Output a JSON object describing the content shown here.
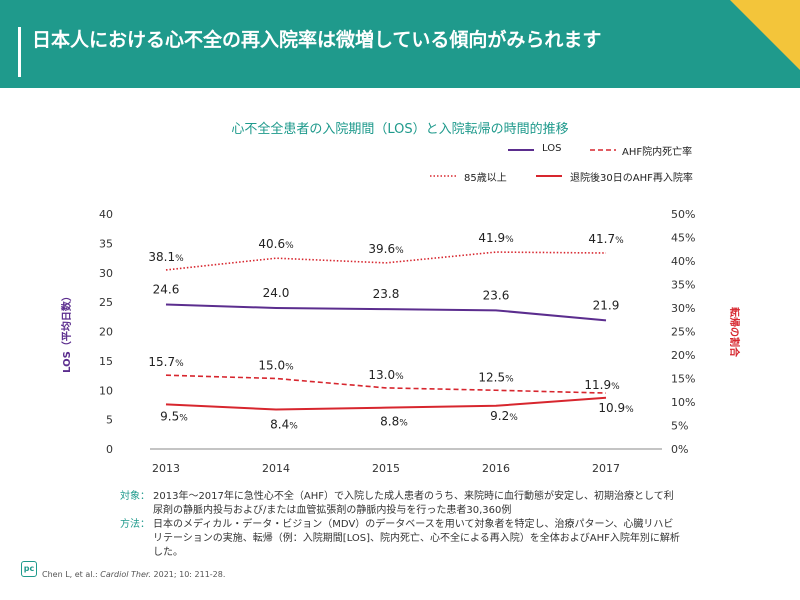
{
  "header": {
    "title": "日本人における心不全の再入院率は微増している傾向がみられます",
    "accent_color": "#1f9a8c",
    "corner_color": "#f3c53a"
  },
  "chart_data": {
    "type": "line",
    "title": "心不全全患者の入院期間（LOS）と入院転帰の時間的推移",
    "categories": [
      "2013",
      "2014",
      "2015",
      "2016",
      "2017"
    ],
    "ylabel_left": "LOS（平均日数）",
    "ylabel_right": "転帰の割合",
    "ylim_left": [
      0,
      40
    ],
    "ylim_right": [
      0,
      50
    ],
    "yticks_left": [
      "0",
      "5",
      "10",
      "15",
      "20",
      "25",
      "30",
      "35",
      "40"
    ],
    "yticks_right": [
      "0%",
      "5%",
      "10%",
      "15%",
      "20%",
      "25%",
      "30%",
      "35%",
      "40%",
      "45%",
      "50%"
    ],
    "series": [
      {
        "name": "LOS",
        "axis": "left",
        "color": "#5b2d8e",
        "style": "solid",
        "values": [
          24.6,
          24.0,
          23.8,
          23.6,
          21.9
        ],
        "labels": [
          "24.6",
          "24.0",
          "23.8",
          "23.6",
          "21.9"
        ]
      },
      {
        "name": "AHF院内死亡率",
        "axis": "right",
        "color": "#d7262e",
        "style": "dashed",
        "values": [
          15.7,
          15.0,
          13.0,
          12.5,
          11.9
        ],
        "labels": [
          "15.7",
          "15.0",
          "13.0",
          "12.5",
          "11.9"
        ]
      },
      {
        "name": "85歳以上",
        "axis": "right",
        "color": "#d7262e",
        "style": "dotted",
        "values": [
          38.1,
          40.6,
          39.6,
          41.9,
          41.7
        ],
        "labels": [
          "38.1",
          "40.6",
          "39.6",
          "41.9",
          "41.7"
        ]
      },
      {
        "name": "退院後30日のAHF再入院率",
        "axis": "right",
        "color": "#d7262e",
        "style": "solid",
        "values": [
          9.5,
          8.4,
          8.8,
          9.2,
          10.9
        ],
        "labels": [
          "9.5",
          "8.4",
          "8.8",
          "9.2",
          "10.9"
        ]
      }
    ],
    "percent_suffix": "%"
  },
  "notes": {
    "target_label": "対象：",
    "target_text": "2013年～2017年に急性心不全（AHF）で入院した成人患者のうち、来院時に血行動態が安定し、初期治療として利尿剤の静脈内投与および/または血管拡張剤の静脈内投与を行った患者30,360例",
    "method_label": "方法：",
    "method_text": "日本のメディカル・データ・ビジョン（MDV）のデータベースを用いて対象者を特定し、治療パターン、心臓リハビリテーションの実施、転帰（例：入院期間[LOS]、院内死亡、心不全による再入院）を全体およびAHF入院年別に解析した。"
  },
  "footer": {
    "logo_text": "pc",
    "citation_authors": "Chen L, et al.: ",
    "citation_journal": "Cardiol Ther.",
    "citation_rest": " 2021; 10: 211-28."
  }
}
